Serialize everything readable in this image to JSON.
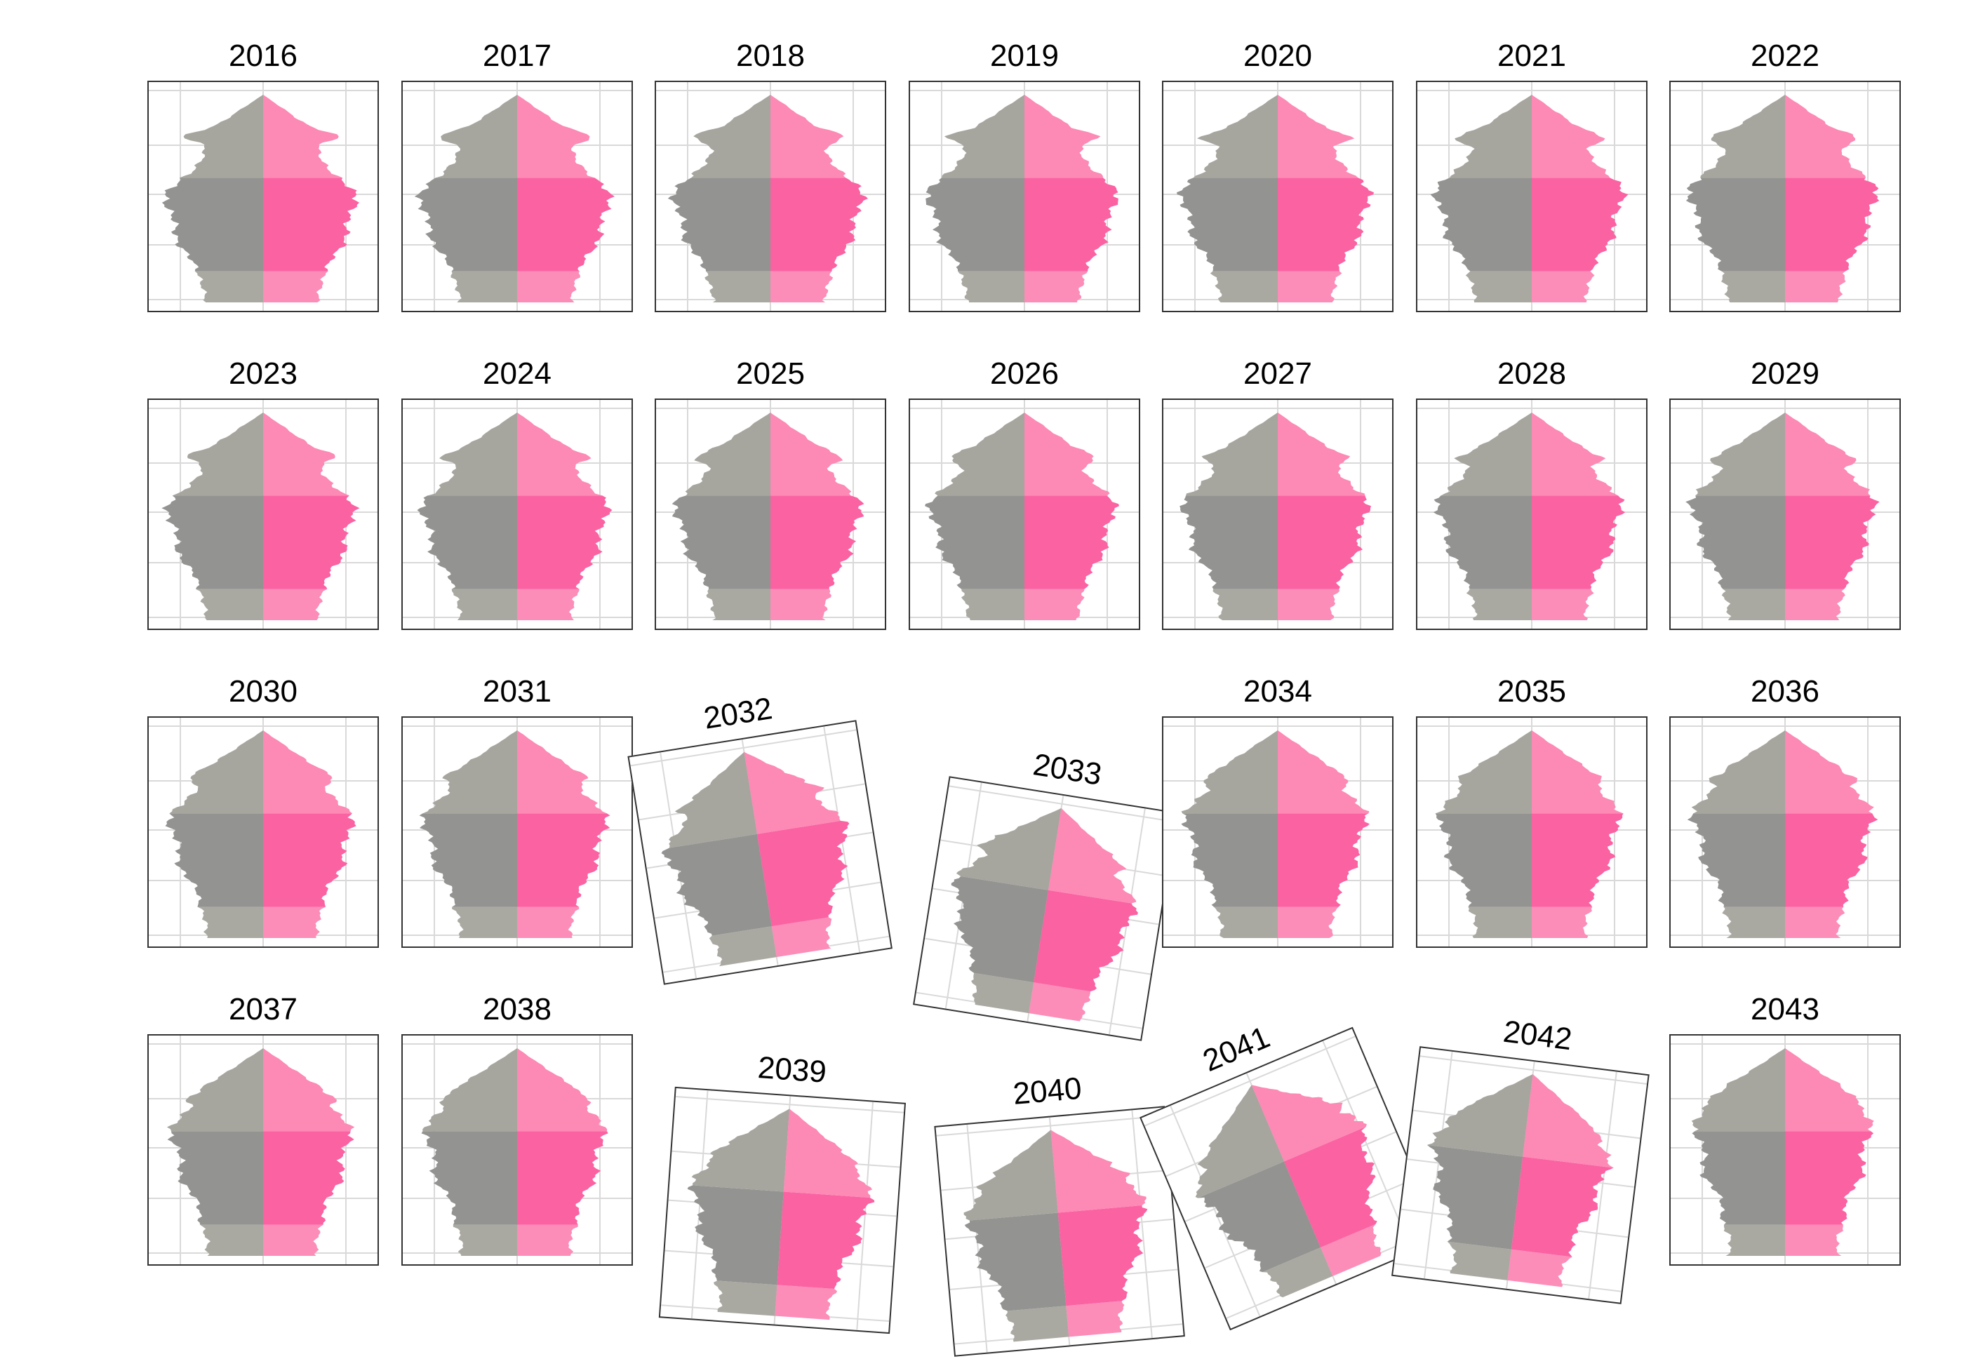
{
  "chart_data": {
    "type": "population-pyramid-small-multiples",
    "panel_titles": [
      "2016",
      "2017",
      "2018",
      "2019",
      "2020",
      "2021",
      "2022",
      "2023",
      "2024",
      "2025",
      "2026",
      "2027",
      "2028",
      "2029",
      "2030",
      "2031",
      "2032",
      "2033",
      "2034",
      "2035",
      "2036",
      "2037",
      "2038",
      "2039",
      "2040",
      "2041",
      "2042",
      "2043"
    ],
    "colors": {
      "male_young": "#aaa9a1",
      "male_working": "#939391",
      "male_old": "#a6a59e",
      "female_young": "#fc8db8",
      "female_working": "#fb62a2",
      "female_old": "#fd89b5",
      "grid": "#d9d9d9",
      "border": "#333333"
    },
    "grid": true,
    "legend": "none"
  }
}
